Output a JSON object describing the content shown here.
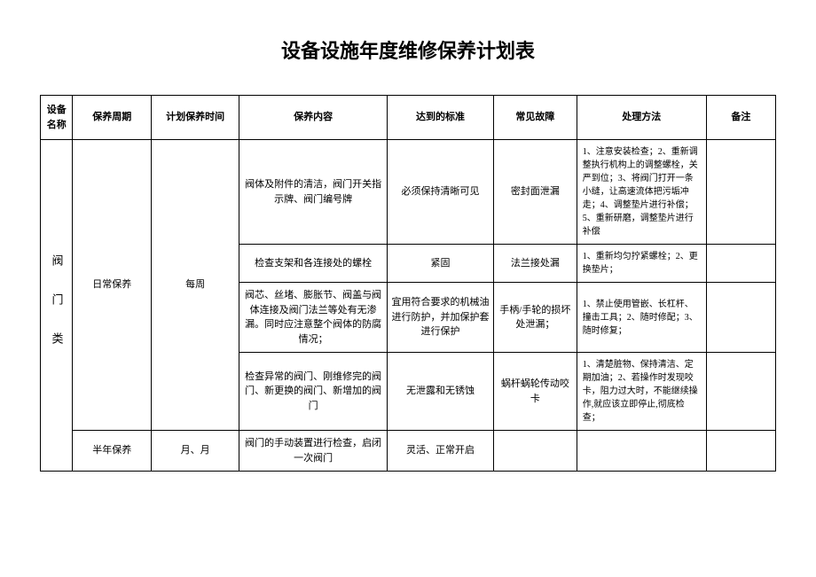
{
  "title": "设备设施年度维修保养计划表",
  "headers": {
    "col1": "设备名称",
    "col2": "保养周期",
    "col3": "计划保养时间",
    "col4": "保养内容",
    "col5": "达到的标准",
    "col6": "常见故障",
    "col7": "处理方法",
    "col8": "备注"
  },
  "equipment_name": "阀 门 类",
  "cycles": {
    "daily": "日常保养",
    "half_year": "半年保养"
  },
  "times": {
    "weekly": "每周",
    "month": "月、月"
  },
  "rows": [
    {
      "content": "阀体及附件的清洁，阀门开关指示牌、阀门编号牌",
      "standard": "必须保持清晰可见",
      "fault": "密封面泄漏",
      "method": "1、注意安装检查；2、重新调整执行机构上的调整螺栓，关严到位；3、将阀门打开一条小缝，让高速流体把污垢冲走；4、调整垫片进行补偿；5、重新研磨，调整垫片进行补偿",
      "remark": ""
    },
    {
      "content": "检查支架和各连接处的螺栓",
      "standard": "紧固",
      "fault": "法兰接处漏",
      "method": "1、重新均匀拧紧螺栓；2、更换垫片；",
      "remark": ""
    },
    {
      "content": "阀芯、丝堵、膨胀节、阀盖与阀体连接及阀门法兰等处有无渗漏。同时应注意整个阀体的防腐情况；",
      "standard": "宜用符合要求的机械油进行防护，并加保护套进行保护",
      "fault": "手柄/手轮的损坏处泄漏；",
      "method": "1、禁止使用管嵌、长杠杆、撞击工具；2、随时修配；3、随时修复；",
      "remark": ""
    },
    {
      "content": "检查异常的阀门、刚维修完的阀门、新更换的阀门、新增加的阀门",
      "standard": "无泄露和无锈蚀",
      "fault": "蜗杆蜗轮传动咬卡",
      "method": "1、清楚脏物、保持清洁、定期加油；2、若操作时发现咬卡，阻力过大时，不能继续操作,就应该立即停止,彻底检查；",
      "remark": ""
    },
    {
      "content": "阀门的手动装置进行检查，启闭一次阀门",
      "standard": "灵活、正常开启",
      "fault": "",
      "method": "",
      "remark": ""
    }
  ]
}
